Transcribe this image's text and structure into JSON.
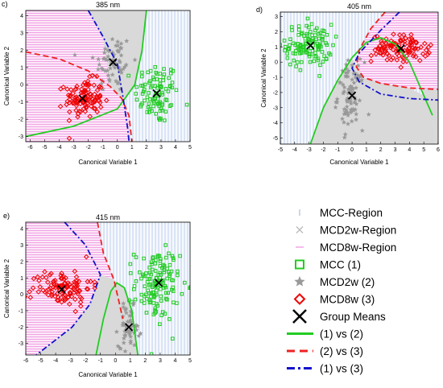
{
  "colors": {
    "mcc": "#22cc22",
    "mcd2w": "#999999",
    "mcd8w": "#ee0000",
    "mean": "#000000",
    "l12": "#22cc22",
    "l23": "#ee2222",
    "l13": "#1010cc",
    "regMcc": "#a8bde0",
    "regMcd2w": "#cccccc",
    "regMcd8w": "#f090e0"
  },
  "chart_data": [
    {
      "type": "scatter",
      "panel_label": "c)",
      "title": "385 nm",
      "xlabel": "Canonical Variable 1",
      "ylabel": "Canonical Variable 2",
      "xlim": [
        -6.3,
        5
      ],
      "ylim": [
        -3.3,
        4.3
      ],
      "xticks": [
        "-6",
        "-5",
        "-4",
        "-3",
        "-2",
        "-1",
        "0",
        "1",
        "2",
        "3",
        "4",
        "5"
      ],
      "yticks": [
        "-3",
        "-2",
        "-1",
        "0",
        "1",
        "2",
        "3",
        "4"
      ],
      "clusters": [
        {
          "name": "MCC (1)",
          "center": [
            2.7,
            -0.5
          ],
          "sx": 0.75,
          "sy": 0.9,
          "n": 95
        },
        {
          "name": "MCD2w (2)",
          "center": [
            -0.3,
            1.3
          ],
          "sx": 0.65,
          "sy": 0.9,
          "n": 65
        },
        {
          "name": "MCD8w (3)",
          "center": [
            -2.3,
            -0.8
          ],
          "sx": 0.65,
          "sy": 0.55,
          "n": 110
        }
      ],
      "means": [
        [
          2.7,
          -0.5
        ],
        [
          -0.3,
          1.3
        ],
        [
          -2.4,
          -0.8
        ]
      ],
      "boundaries": {
        "l12": [
          [
            -6.3,
            -3.0
          ],
          [
            -3,
            -2.4
          ],
          [
            0,
            -1.4
          ],
          [
            1.2,
            0
          ],
          [
            1.7,
            2
          ],
          [
            2.0,
            4.3
          ]
        ],
        "l23": [
          [
            -6.3,
            1.9
          ],
          [
            -4,
            1.5
          ],
          [
            -2,
            0.8
          ],
          [
            -0.5,
            -0.1
          ],
          [
            0.3,
            -0.8
          ],
          [
            0.8,
            -1.8
          ],
          [
            1.0,
            -3.3
          ]
        ],
        "l13": [
          [
            -2.0,
            4.3
          ],
          [
            -1,
            2.8
          ],
          [
            0,
            1.2
          ],
          [
            0.4,
            -0.8
          ],
          [
            0.7,
            -2.5
          ],
          [
            0.8,
            -3.3
          ]
        ]
      }
    },
    {
      "type": "scatter",
      "panel_label": "d)",
      "title": "405 nm",
      "xlabel": "Canonical Variable 1",
      "ylabel": "Canonical Variable 2",
      "xlim": [
        -5,
        6
      ],
      "ylim": [
        -5.4,
        3.3
      ],
      "xticks": [
        "-5",
        "-4",
        "-3",
        "-2",
        "-1",
        "0",
        "1",
        "2",
        "3",
        "4",
        "5",
        "6"
      ],
      "yticks": [
        "-5",
        "-4",
        "-3",
        "-2",
        "-1",
        "0",
        "1",
        "2",
        "3"
      ],
      "clusters": [
        {
          "name": "MCC (1)",
          "center": [
            -3,
            1.1
          ],
          "sx": 0.8,
          "sy": 0.7,
          "n": 120
        },
        {
          "name": "MCD2w (2)",
          "center": [
            -0.1,
            -2.2
          ],
          "sx": 0.45,
          "sy": 1.1,
          "n": 90
        },
        {
          "name": "MCD8w (3)",
          "center": [
            3.4,
            0.9
          ],
          "sx": 1.0,
          "sy": 0.45,
          "n": 110
        }
      ],
      "means": [
        [
          -2.9,
          1.1
        ],
        [
          0,
          -2.2
        ],
        [
          3.4,
          0.9
        ]
      ],
      "boundaries": {
        "l12": [
          [
            -2.9,
            -5.4
          ],
          [
            -2,
            -3
          ],
          [
            -1,
            -1.2
          ],
          [
            0,
            0.3
          ],
          [
            1,
            1.3
          ],
          [
            2,
            1.6
          ],
          [
            3,
            1.2
          ],
          [
            4,
            0
          ],
          [
            5,
            -2.2
          ],
          [
            5.6,
            -3.5
          ]
        ],
        "l23": [
          [
            2.3,
            3.3
          ],
          [
            1.3,
            2.2
          ],
          [
            0.5,
            0.8
          ],
          [
            0.3,
            -0.3
          ],
          [
            0.8,
            -1.0
          ],
          [
            2,
            -1.4
          ],
          [
            4,
            -1.7
          ],
          [
            6,
            -1.8
          ]
        ],
        "l13": [
          [
            3.3,
            3.3
          ],
          [
            2,
            2.1
          ],
          [
            0.5,
            0.6
          ],
          [
            0,
            -0.4
          ],
          [
            0.5,
            -1.3
          ],
          [
            2,
            -2.1
          ],
          [
            4,
            -2.4
          ],
          [
            6,
            -2.5
          ]
        ]
      }
    },
    {
      "type": "scatter",
      "panel_label": "e)",
      "title": "415 nm",
      "xlabel": "Canonical Variable 1",
      "ylabel": "Canonical Variable 2",
      "xlim": [
        -6,
        5
      ],
      "ylim": [
        -3.7,
        4.4
      ],
      "xticks": [
        "-6",
        "-5",
        "-4",
        "-3",
        "-2",
        "-1",
        "0",
        "1",
        "2",
        "3",
        "4",
        "5"
      ],
      "yticks": [
        "-3",
        "-2",
        "-1",
        "0",
        "1",
        "2",
        "3",
        "4"
      ],
      "clusters": [
        {
          "name": "MCC (1)",
          "center": [
            2.8,
            0.6
          ],
          "sx": 0.75,
          "sy": 1.1,
          "n": 140
        },
        {
          "name": "MCD2w (2)",
          "center": [
            0.9,
            -2.0
          ],
          "sx": 0.35,
          "sy": 0.6,
          "n": 60
        },
        {
          "name": "MCD8w (3)",
          "center": [
            -3.6,
            0.4
          ],
          "sx": 1.0,
          "sy": 0.55,
          "n": 110
        }
      ],
      "means": [
        [
          2.9,
          0.7
        ],
        [
          0.9,
          -2.0
        ],
        [
          -3.6,
          0.3
        ]
      ],
      "boundaries": {
        "l12": [
          [
            -1.3,
            -3.7
          ],
          [
            -0.8,
            -1.5
          ],
          [
            -0.3,
            0.2
          ],
          [
            0.1,
            0.7
          ],
          [
            0.6,
            0.4
          ],
          [
            1.1,
            -1
          ],
          [
            1.5,
            -3.7
          ]
        ],
        "l23": [
          [
            -1.2,
            4.4
          ],
          [
            -0.8,
            2.5
          ],
          [
            -0.1,
            0.9
          ],
          [
            0.2,
            -0.3
          ],
          [
            0.5,
            -1.5
          ]
        ],
        "l13": [
          [
            -3.4,
            4.4
          ],
          [
            -2,
            3
          ],
          [
            -1,
            1.2
          ],
          [
            -1.7,
            -0.6
          ],
          [
            -2.9,
            -2
          ],
          [
            -5.3,
            -3.7
          ]
        ]
      }
    }
  ],
  "legend": {
    "items": [
      {
        "key": "mcc-region",
        "label": "MCC-Region"
      },
      {
        "key": "mcd2w-region",
        "label": "MCD2w-Region"
      },
      {
        "key": "mcd8w-region",
        "label": "MCD8w-Region"
      },
      {
        "key": "mcc",
        "label": "MCC (1)"
      },
      {
        "key": "mcd2w",
        "label": "MCD2w (2)"
      },
      {
        "key": "mcd8w",
        "label": "MCD8w (3)"
      },
      {
        "key": "mean",
        "label": "Group Means"
      },
      {
        "key": "l12",
        "label": "(1) vs (2)"
      },
      {
        "key": "l23",
        "label": "(2) vs (3)"
      },
      {
        "key": "l13",
        "label": "(1) vs (3)"
      }
    ]
  }
}
